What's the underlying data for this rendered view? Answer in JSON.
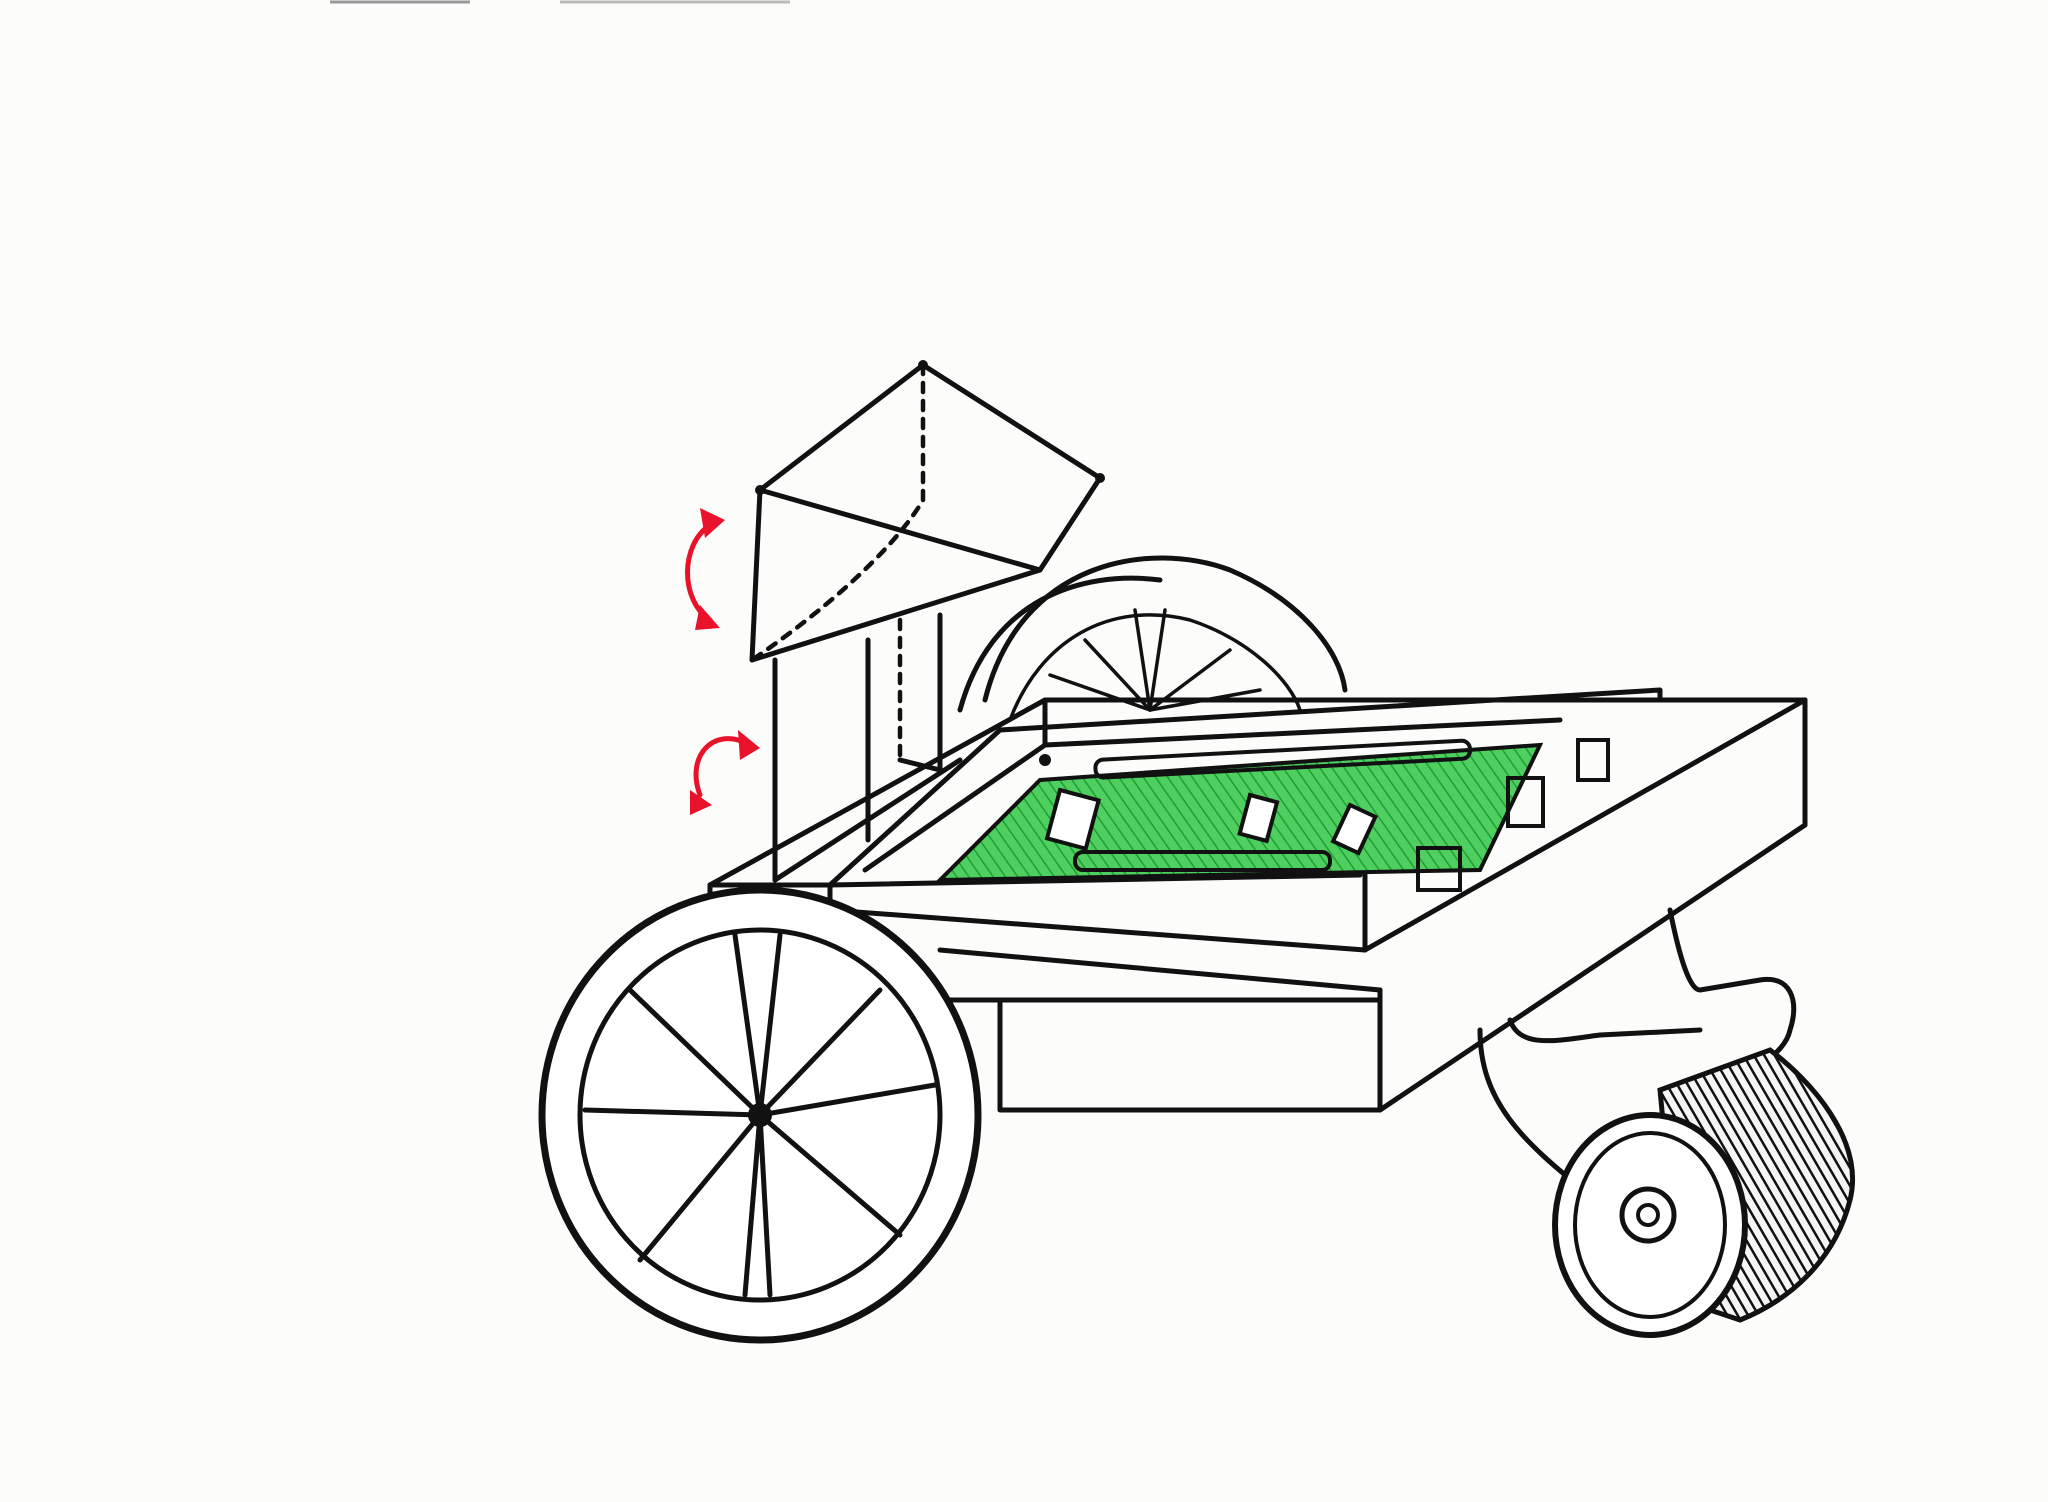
{
  "image": {
    "subject": "",
    "colors": {
      "ink": "#111111",
      "paper": "#fcfcfb",
      "circuit_board": "#33c24a",
      "rotation_arrows": "#e8132b"
    }
  }
}
